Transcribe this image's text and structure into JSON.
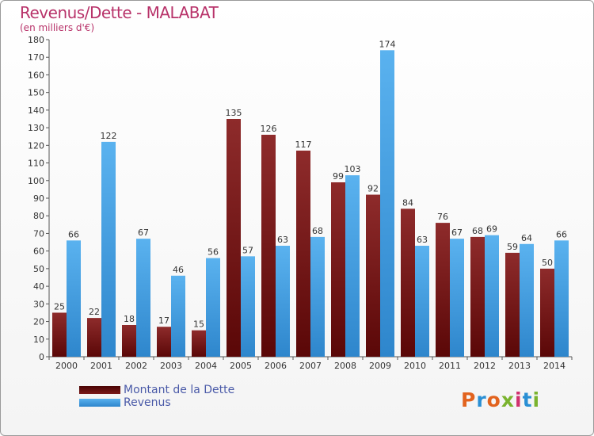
{
  "title": "Revenus/Dette - MALABAT",
  "subtitle": "(en milliers d'€)",
  "logo_text": "Proxiti",
  "colors": {
    "dette": "#7a1f1f",
    "revenus": "#3e9de0",
    "title": "#b8336a",
    "legend_text": "#4a5aa8"
  },
  "legend": [
    {
      "label": "Montant de la Dette",
      "color": "#6e0f0f"
    },
    {
      "label": "Revenus",
      "color": "#3e9de0"
    }
  ],
  "chart_data": {
    "type": "bar",
    "categories": [
      "2000",
      "2001",
      "2002",
      "2003",
      "2004",
      "2005",
      "2006",
      "2007",
      "2008",
      "2009",
      "2010",
      "2011",
      "2012",
      "2013",
      "2014"
    ],
    "series": [
      {
        "name": "Montant de la Dette",
        "values": [
          25,
          22,
          18,
          17,
          15,
          135,
          126,
          117,
          99,
          92,
          84,
          76,
          68,
          59,
          50
        ]
      },
      {
        "name": "Revenus",
        "values": [
          66,
          122,
          67,
          46,
          56,
          57,
          63,
          68,
          103,
          174,
          63,
          67,
          69,
          64,
          66
        ]
      }
    ],
    "ylim": [
      0,
      180
    ],
    "yticks": [
      0,
      10,
      20,
      30,
      40,
      50,
      60,
      70,
      80,
      90,
      100,
      110,
      120,
      130,
      140,
      150,
      160,
      170,
      180
    ],
    "grid": false,
    "legend_position": "bottom-left"
  }
}
